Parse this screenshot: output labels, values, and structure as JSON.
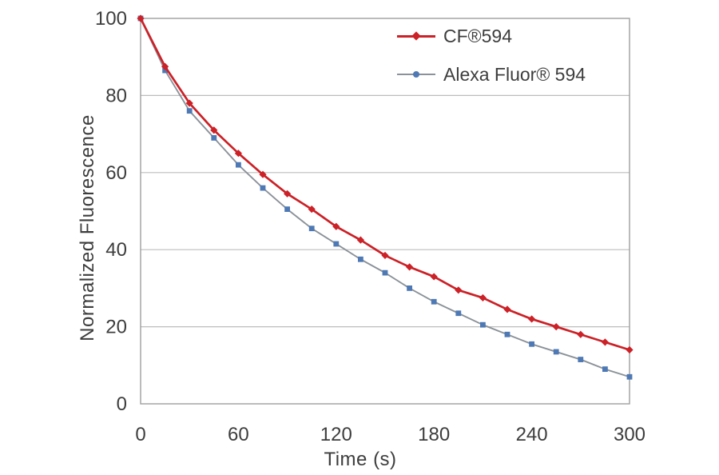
{
  "chart_data": {
    "type": "line",
    "title": "",
    "xlabel": "Time (s)",
    "ylabel": "Normalized Fluorescence",
    "xlim": [
      0,
      300
    ],
    "ylim": [
      0,
      100
    ],
    "x_ticks": [
      0,
      60,
      120,
      180,
      240,
      300
    ],
    "y_ticks": [
      0,
      20,
      40,
      60,
      80,
      100
    ],
    "grid": "horizontal",
    "legend_position": "inside-top-center",
    "x": [
      0,
      15,
      30,
      45,
      60,
      75,
      90,
      105,
      120,
      135,
      150,
      165,
      180,
      195,
      210,
      225,
      240,
      255,
      270,
      285,
      300
    ],
    "series": [
      {
        "name": "CF®594",
        "line_color": "#cb2127",
        "marker_color": "#cb2127",
        "marker": "diamond",
        "line_width": 2.7,
        "values": [
          100,
          87.5,
          78,
          71,
          65,
          59.5,
          54.5,
          50.5,
          46,
          42.5,
          38.5,
          35.5,
          33,
          29.5,
          27.5,
          24.5,
          22,
          20,
          18,
          16,
          14
        ]
      },
      {
        "name": "Alexa Fluor® 594",
        "line_color": "#8b9299",
        "marker_color": "#4e79b4",
        "marker": "square",
        "line_width": 1.9,
        "values": [
          100,
          86.5,
          76,
          69,
          62,
          56,
          50.5,
          45.5,
          41.5,
          37.5,
          34,
          30,
          26.5,
          23.5,
          20.5,
          18,
          15.5,
          13.5,
          11.5,
          9,
          7
        ]
      }
    ],
    "colors": {
      "grid": "#bdbdbd",
      "border": "#9e9e9e",
      "text": "#3d3d3d",
      "background": "#ffffff"
    }
  }
}
